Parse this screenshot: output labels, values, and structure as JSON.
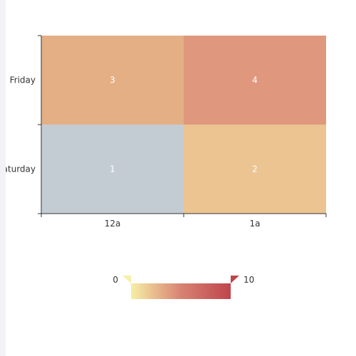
{
  "chart_data": {
    "type": "heatmap",
    "title": "",
    "x_categories": [
      "12a",
      "1a"
    ],
    "y_categories": [
      "Friday",
      "Saturday"
    ],
    "cells": [
      {
        "x": "12a",
        "y": "Friday",
        "value": 3
      },
      {
        "x": "1a",
        "y": "Friday",
        "value": 4
      },
      {
        "x": "12a",
        "y": "Saturday",
        "value": 1
      },
      {
        "x": "1a",
        "y": "Saturday",
        "value": 2
      }
    ],
    "visual_map": {
      "min": 0,
      "max": 10,
      "min_label": "0",
      "max_label": "10",
      "colors": [
        "#f6efa6",
        "#d88273",
        "#bf444c"
      ],
      "placement": "bottom-center",
      "orientation": "horizontal",
      "selected_range": [
        0,
        10
      ]
    },
    "cell_colors": {
      "1": "#c4ccd3",
      "2": "#ebc491",
      "3": "#e4af85",
      "4": "#df987d"
    },
    "label_color": "#ffffff",
    "axis_color": "#333333"
  }
}
